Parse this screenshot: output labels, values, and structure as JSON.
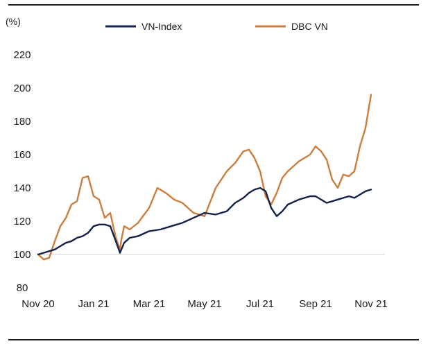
{
  "chart_data": {
    "type": "line",
    "title": "",
    "xlabel": "",
    "ylabel": "(%)",
    "ylim": [
      80,
      220
    ],
    "yticks": [
      80,
      100,
      120,
      140,
      160,
      180,
      200,
      220
    ],
    "xtick_labels": [
      "Nov 20",
      "Jan 21",
      "Mar 21",
      "May 21",
      "Jul 21",
      "Sep 21",
      "Nov 21"
    ],
    "xlim": [
      0,
      12.5
    ],
    "legend": "top",
    "grid": false,
    "reference_line": 100,
    "colors": {
      "vn_index": "#14214a",
      "dbc_vn": "#cc7d3c",
      "reference": "#d0d0d0",
      "frame": "#1a1a1a"
    },
    "series": [
      {
        "name": "VN-Index",
        "color": "#14214a",
        "x": [
          0,
          0.2,
          0.4,
          0.6,
          0.8,
          1.0,
          1.2,
          1.4,
          1.6,
          1.8,
          2.0,
          2.2,
          2.4,
          2.6,
          2.8,
          2.95,
          3.0,
          3.1,
          3.3,
          3.6,
          4.0,
          4.4,
          4.8,
          5.2,
          5.6,
          6.0,
          6.4,
          6.8,
          7.1,
          7.4,
          7.6,
          7.8,
          8.0,
          8.2,
          8.4,
          8.6,
          8.8,
          9.0,
          9.4,
          9.8,
          10.0,
          10.4,
          10.8,
          11.0,
          11.2,
          11.4,
          11.6,
          11.8,
          12.0
        ],
        "values": [
          100,
          101,
          102,
          103,
          105,
          107,
          108,
          110,
          111,
          113,
          117,
          118,
          118,
          117,
          108,
          101,
          103,
          107,
          110,
          111,
          114,
          115,
          117,
          119,
          122,
          125,
          124,
          126,
          131,
          134,
          137,
          139,
          140,
          138,
          128,
          123,
          126,
          130,
          133,
          135,
          135,
          131,
          133,
          134,
          135,
          134,
          136,
          138,
          139
        ]
      },
      {
        "name": "DBC VN",
        "color": "#cc7d3c",
        "x": [
          0,
          0.2,
          0.4,
          0.6,
          0.8,
          1.0,
          1.2,
          1.4,
          1.6,
          1.8,
          2.0,
          2.2,
          2.4,
          2.6,
          2.8,
          2.95,
          3.0,
          3.1,
          3.3,
          3.6,
          4.0,
          4.3,
          4.6,
          4.9,
          5.2,
          5.6,
          6.0,
          6.4,
          6.8,
          7.1,
          7.4,
          7.6,
          7.8,
          8.0,
          8.2,
          8.4,
          8.6,
          8.8,
          9.0,
          9.4,
          9.8,
          10.0,
          10.2,
          10.4,
          10.6,
          10.8,
          11.0,
          11.2,
          11.4,
          11.6,
          11.8,
          12.0
        ],
        "values": [
          100,
          97,
          98,
          108,
          117,
          122,
          130,
          132,
          146,
          147,
          135,
          133,
          122,
          125,
          110,
          103,
          109,
          117,
          115,
          119,
          128,
          140,
          137,
          133,
          131,
          125,
          123,
          140,
          150,
          155,
          162,
          163,
          158,
          150,
          135,
          130,
          137,
          146,
          150,
          156,
          160,
          165,
          162,
          157,
          145,
          140,
          148,
          147,
          150,
          165,
          176,
          196
        ]
      }
    ]
  }
}
